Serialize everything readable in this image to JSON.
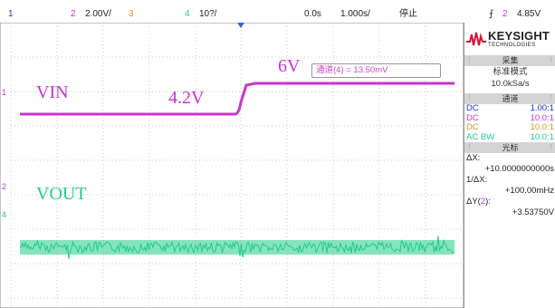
{
  "status": {
    "ch1_num": "1",
    "ch2_num": "2",
    "ch2_scale": "2.00V/",
    "ch3_num": "3",
    "ch4_num": "4",
    "ch4_scale": "10?/",
    "time_offset": "0.0s",
    "time_scale": "1.000s/",
    "run_state": "停止",
    "trigger_symbol": "⨍",
    "trigger_channel": "2",
    "trigger_level": "4.85V"
  },
  "screen": {
    "readout": "通道(4) = 13.50mV",
    "trace_labels": {
      "vin": "VIN",
      "vout": "VOUT",
      "v_before": "4.2V",
      "v_after": "6V"
    },
    "markers": {
      "ch1": "1",
      "ch2": "2",
      "ch4": "4"
    }
  },
  "side": {
    "brand": "KEYSIGHT",
    "brand_sub": "TECHNOLOGIES",
    "acq_title": "采集",
    "acq_mode": "标准模式",
    "acq_rate": "10.0kSa/s",
    "ch_title": "通道",
    "channels": [
      {
        "coupling": "DC",
        "ratio": "1.00:1",
        "color": "#2233cc"
      },
      {
        "coupling": "DC",
        "ratio": "10.0:1",
        "color": "#cc33cc"
      },
      {
        "coupling": "DC",
        "ratio": "10.0:1",
        "color": "#c8a020"
      },
      {
        "coupling": "AC BW",
        "ratio": "10.0:1",
        "color": "#22cc88"
      }
    ],
    "cursor_title": "光标",
    "dx_label": "ΔX:",
    "dx_value": "+10.0000000000s",
    "inv_dx_label": "1/ΔX:",
    "inv_dx_value": "+100.00mHz",
    "dy_label_prefix": "ΔY(",
    "dy_channel": "2",
    "dy_label_suffix": "):",
    "dy_value": "+3.53750V"
  },
  "colors": {
    "ch1": "#2233cc",
    "ch2": "#cc33cc",
    "ch3": "#c8a020",
    "ch4": "#22cc88",
    "grid": "#c8c8c8"
  }
}
